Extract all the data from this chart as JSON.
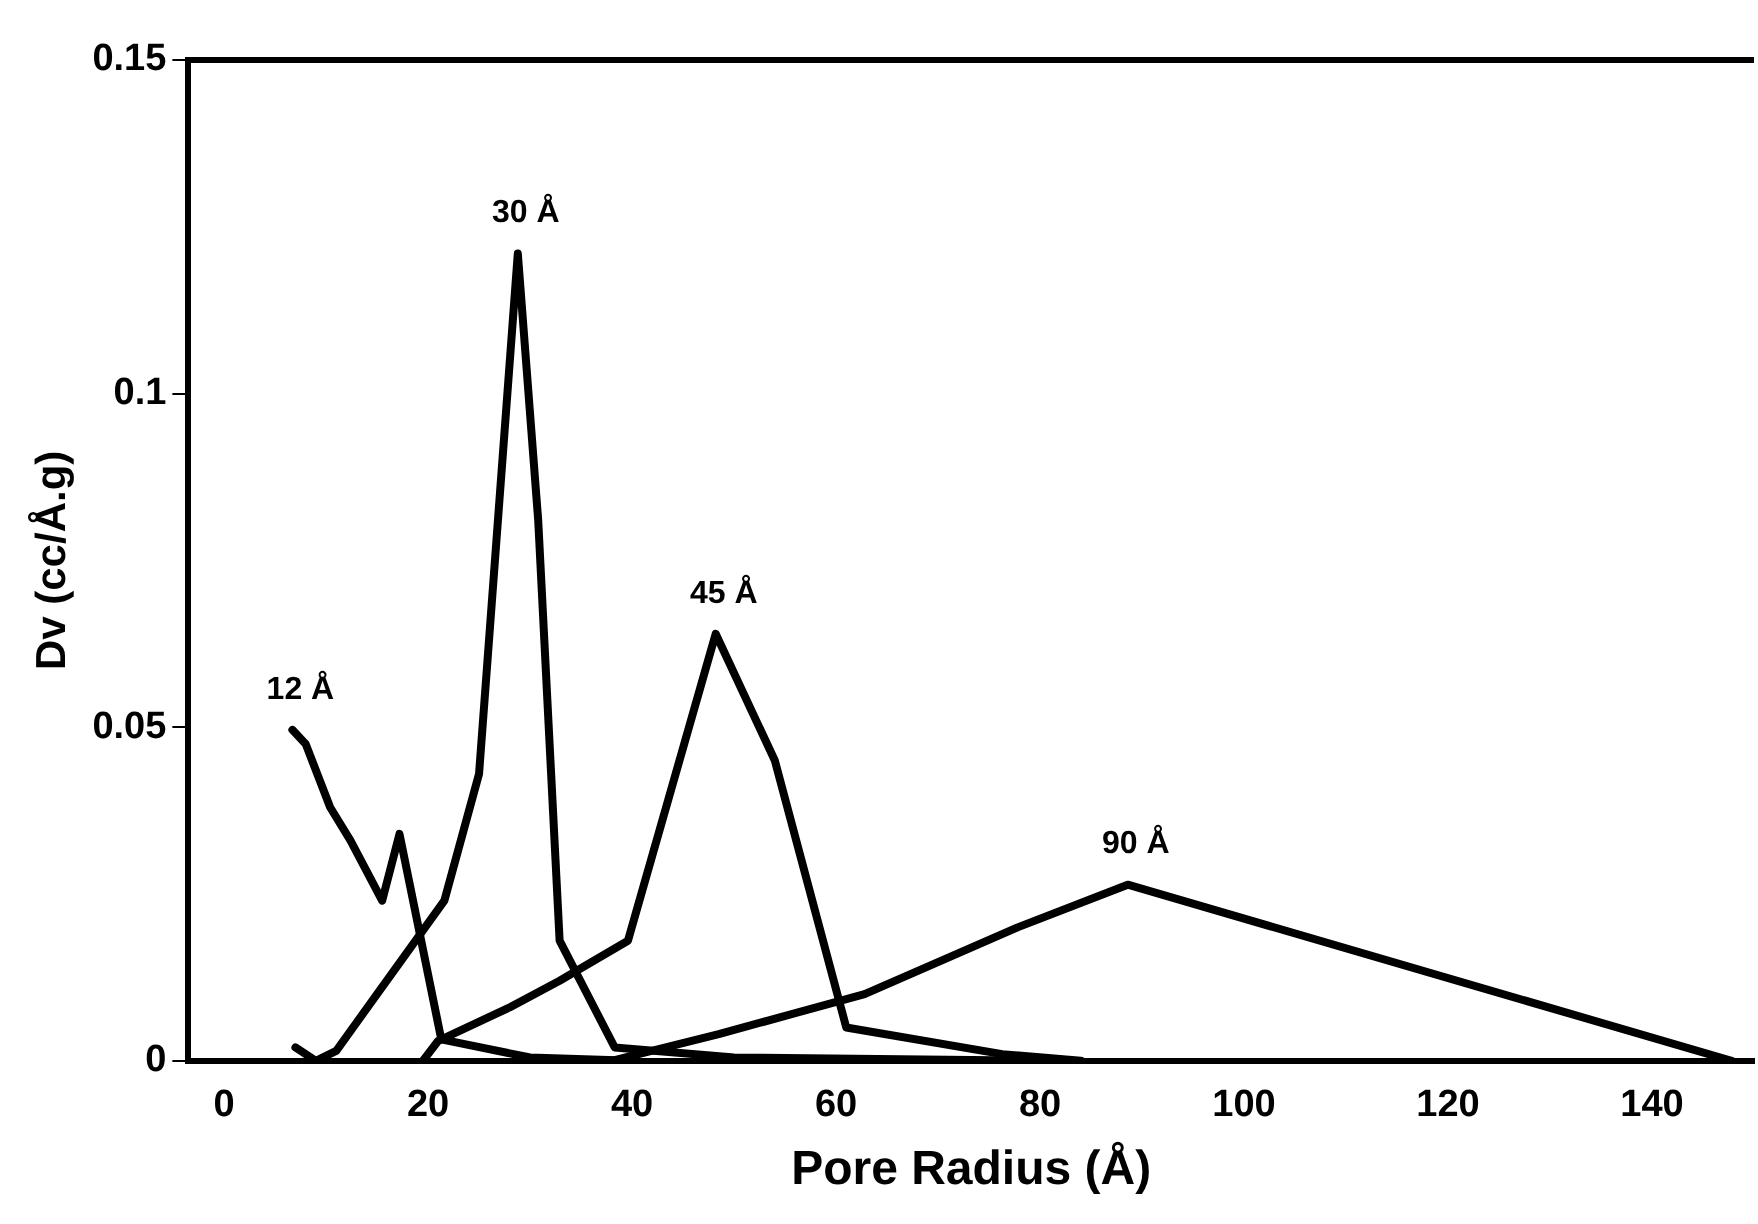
{
  "chart_data": {
    "type": "line",
    "xlabel": "Pore Radius (Å)",
    "ylabel": "Dv (cc/Å.g)",
    "xlim": [
      -3.5,
      150
    ],
    "ylim": [
      0,
      0.15
    ],
    "xticks": [
      0,
      20,
      40,
      60,
      80,
      100,
      120,
      140
    ],
    "yticks": [
      0,
      0.05,
      0.1,
      0.15
    ],
    "grid": false,
    "legend": false,
    "marker": "none",
    "line_style": "solid",
    "series": [
      {
        "color": "#000000",
        "x": [
          6.7,
          8,
          10.4,
          12.4,
          15.5,
          17.2,
          21.3,
          30,
          40
        ],
        "values": [
          0.0496,
          0.0475,
          0.038,
          0.033,
          0.024,
          0.034,
          0.0032,
          0.0005,
          0
        ]
      },
      {
        "color": "#000000",
        "x": [
          7,
          9,
          11,
          21.6,
          25,
          28.8,
          30.8,
          32.9,
          38.3,
          50,
          80
        ],
        "values": [
          0.002,
          0,
          0.0015,
          0.024,
          0.043,
          0.121,
          0.081,
          0.018,
          0.002,
          0.0005,
          0
        ]
      },
      {
        "color": "#000000",
        "x": [
          19.5,
          21,
          28,
          32.9,
          39.6,
          48.2,
          54,
          61,
          76.3,
          84
        ],
        "values": [
          0,
          0.003,
          0.008,
          0.012,
          0.018,
          0.064,
          0.045,
          0.005,
          0.001,
          0
        ]
      },
      {
        "color": "#000000",
        "x": [
          38,
          48.5,
          62.8,
          77.8,
          88.6,
          147.8
        ],
        "values": [
          0,
          0.004,
          0.01,
          0.02,
          0.0264,
          0
        ]
      }
    ],
    "annotations": [
      {
        "text": "12 Å",
        "x": 6.7,
        "y": 0.0496
      },
      {
        "text": "30 Å",
        "x": 28.8,
        "y": 0.121
      },
      {
        "text": "45 Å",
        "x": 48.2,
        "y": 0.064
      },
      {
        "text": "90 Å",
        "x": 88.6,
        "y": 0.0264
      }
    ]
  }
}
